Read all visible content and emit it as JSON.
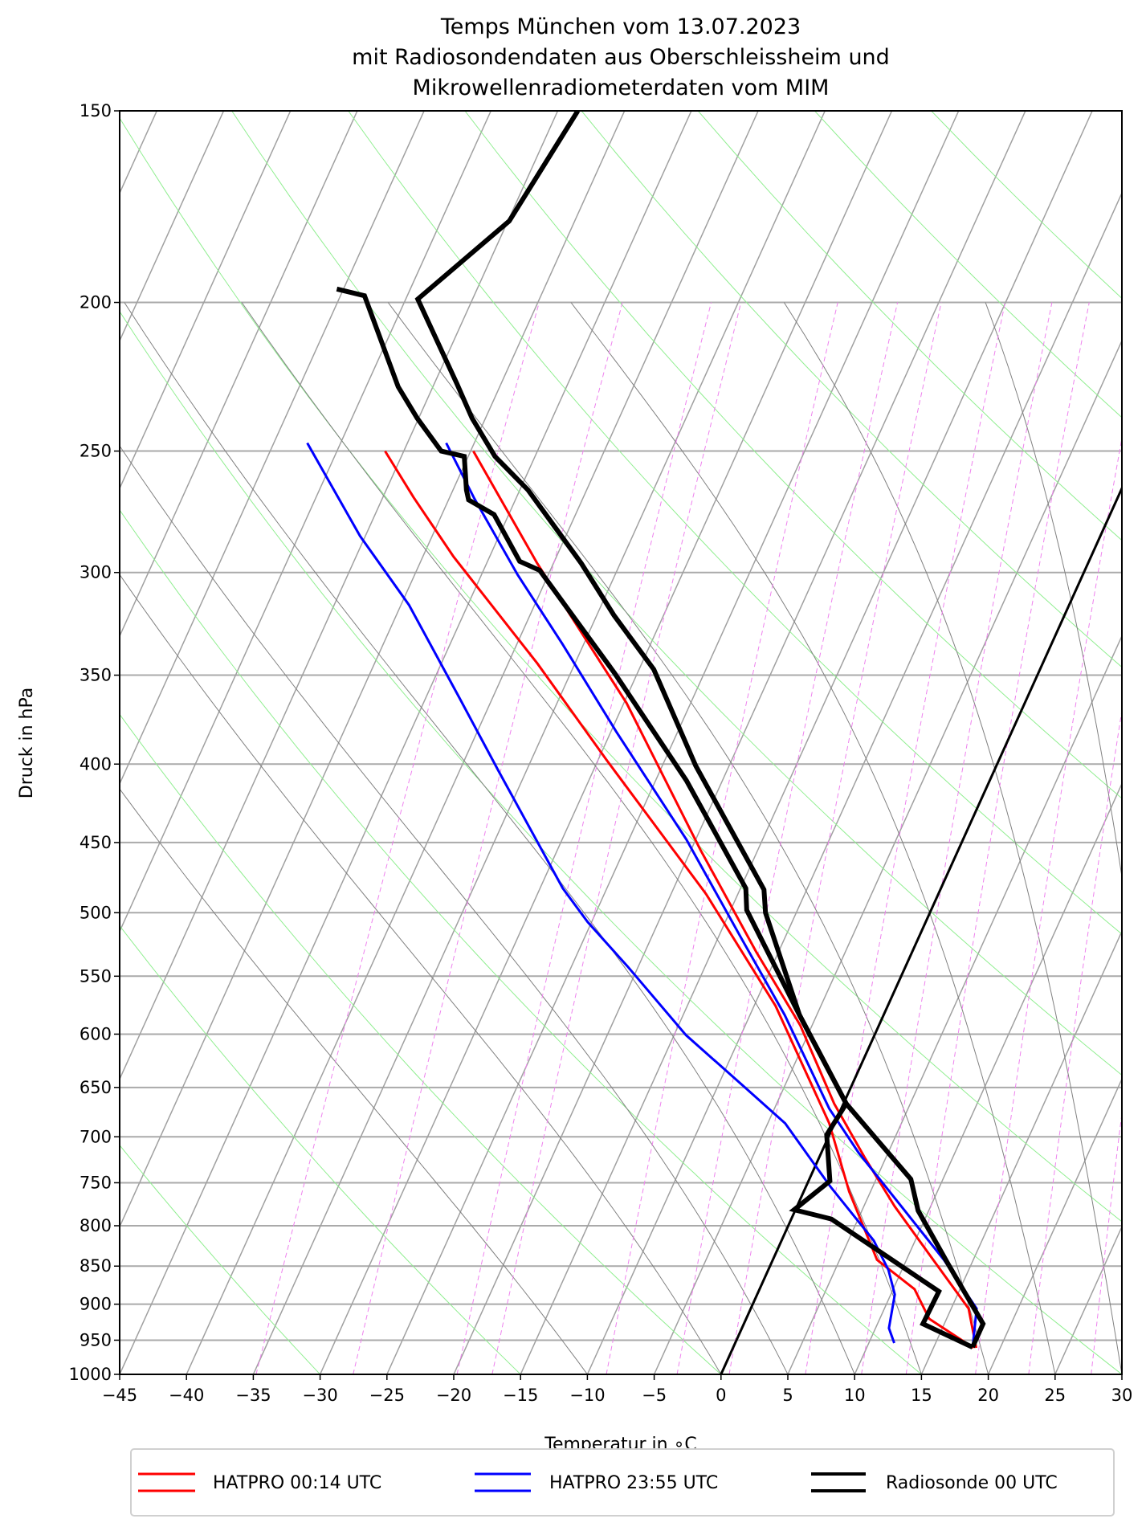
{
  "chart_data": {
    "type": "line",
    "diagram": "skew-T log-p",
    "title": [
      "Temps München vom 13.07.2023",
      "mit Radiosondendaten aus Oberschleissheim und",
      "Mikrowellenradiometerdaten vom MIM"
    ],
    "xlabel": "Temperatur in $^\\circ$C",
    "xlabel_display": "Temperatur in ∘C",
    "ylabel": "Druck in hPa",
    "xlim": [
      -45,
      30
    ],
    "ylim": [
      1000,
      150
    ],
    "yscale": "log",
    "grid": true,
    "legend_placement": "bottom",
    "xticks": [
      "−45",
      "−40",
      "−35",
      "−30",
      "−25",
      "−20",
      "−15",
      "−10",
      "−5",
      "0",
      "5",
      "10",
      "15",
      "20",
      "25",
      "30"
    ],
    "xtick_values": [
      -45,
      -40,
      -35,
      -30,
      -25,
      -20,
      -15,
      -10,
      -5,
      0,
      5,
      10,
      15,
      20,
      25,
      30
    ],
    "yticks": [
      "150",
      "200",
      "250",
      "300",
      "350",
      "400",
      "450",
      "500",
      "550",
      "600",
      "650",
      "700",
      "750",
      "800",
      "850",
      "900",
      "950",
      "1000"
    ],
    "ytick_values": [
      150,
      200,
      250,
      300,
      350,
      400,
      450,
      500,
      550,
      600,
      650,
      700,
      750,
      800,
      850,
      900,
      950,
      1000
    ],
    "reference_lines": {
      "isotherm_step_C": 5,
      "highlighted_isotherm_C": 0,
      "dry_adiabat_color": "#90ee90",
      "moist_adiabat_start_C_at_1000hPa": [
        -10,
        0,
        5,
        10,
        15,
        20,
        25,
        30,
        35
      ],
      "mixing_ratios_g_per_kg": [
        0.2,
        0.4,
        0.8,
        1,
        2,
        3,
        4,
        6,
        8,
        10,
        14,
        18,
        24
      ],
      "mixing_ratio_color": "#ee82ee"
    },
    "series": [
      {
        "name": "HATPRO 00:14 UTC",
        "color": "#ff0000",
        "temperature": [
          [
            250,
            -49.8
          ],
          [
            296,
            -41.2
          ],
          [
            365,
            -29.8
          ],
          [
            455,
            -19.3
          ],
          [
            530,
            -11.7
          ],
          [
            592,
            -5.9
          ],
          [
            666,
            -0.7
          ],
          [
            722,
            3.4
          ],
          [
            777,
            7.3
          ],
          [
            842,
            12.0
          ],
          [
            906,
            16.3
          ],
          [
            961,
            18.2
          ]
        ],
        "dewpoint": [
          [
            250,
            -56.4
          ],
          [
            268,
            -52.7
          ],
          [
            293,
            -47.7
          ],
          [
            344,
            -37.8
          ],
          [
            398,
            -29.3
          ],
          [
            486,
            -17.4
          ],
          [
            575,
            -8.4
          ],
          [
            686,
            -0.4
          ],
          [
            760,
            3.4
          ],
          [
            842,
            7.8
          ],
          [
            880,
            11.6
          ],
          [
            920,
            13.7
          ],
          [
            961,
            18.0
          ]
        ]
      },
      {
        "name": "HATPRO 23:55 UTC",
        "color": "#0000ff",
        "temperature": [
          [
            247,
            -52.1
          ],
          [
            268,
            -48.2
          ],
          [
            301,
            -42.3
          ],
          [
            334,
            -36.6
          ],
          [
            381,
            -29.6
          ],
          [
            448,
            -20.7
          ],
          [
            519,
            -13.3
          ],
          [
            583,
            -7.4
          ],
          [
            671,
            -0.9
          ],
          [
            717,
            2.8
          ],
          [
            782,
            8.2
          ],
          [
            842,
            12.8
          ],
          [
            906,
            16.9
          ],
          [
            954,
            17.8
          ]
        ],
        "dewpoint": [
          [
            247,
            -62.5
          ],
          [
            284,
            -55.4
          ],
          [
            315,
            -49.4
          ],
          [
            362,
            -42.5
          ],
          [
            404,
            -37.1
          ],
          [
            482,
            -28.3
          ],
          [
            507,
            -25.3
          ],
          [
            542,
            -20.8
          ],
          [
            601,
            -14.1
          ],
          [
            651,
            -7.8
          ],
          [
            686,
            -3.7
          ],
          [
            754,
            1.8
          ],
          [
            818,
            6.9
          ],
          [
            855,
            9.0
          ],
          [
            887,
            10.3
          ],
          [
            933,
            11.0
          ],
          [
            954,
            11.9
          ]
        ]
      },
      {
        "name": "Radiosonde 00 UTC",
        "color": "#000000",
        "temperature": [
          [
            150,
            -53.5
          ],
          [
            177,
            -54.9
          ],
          [
            199,
            -59.1
          ],
          [
            226,
            -53.3
          ],
          [
            238,
            -51.0
          ],
          [
            252,
            -48.0
          ],
          [
            265,
            -44.4
          ],
          [
            296,
            -37.9
          ],
          [
            320,
            -33.7
          ],
          [
            347,
            -28.9
          ],
          [
            401,
            -22.5
          ],
          [
            483,
            -13.2
          ],
          [
            500,
            -12.3
          ],
          [
            583,
            -6.3
          ],
          [
            666,
            0.2
          ],
          [
            706,
            4.0
          ],
          [
            746,
            7.6
          ],
          [
            782,
            9.2
          ],
          [
            848,
            13.3
          ],
          [
            927,
            17.9
          ],
          [
            960,
            17.9
          ]
        ],
        "dewpoint": [
          [
            196,
            -65.5
          ],
          [
            198,
            -63.2
          ],
          [
            227,
            -57.6
          ],
          [
            238,
            -55.1
          ],
          [
            250,
            -52.2
          ],
          [
            252,
            -50.3
          ],
          [
            265,
            -49.0
          ],
          [
            269,
            -48.5
          ],
          [
            275,
            -46.1
          ],
          [
            295,
            -42.6
          ],
          [
            299,
            -40.8
          ],
          [
            349,
            -31.7
          ],
          [
            410,
            -22.7
          ],
          [
            482,
            -14.6
          ],
          [
            498,
            -13.8
          ],
          [
            583,
            -6.3
          ],
          [
            666,
            0.2
          ],
          [
            698,
            -0.2
          ],
          [
            748,
            1.6
          ],
          [
            781,
            -0.1
          ],
          [
            792,
            3.0
          ],
          [
            883,
            13.5
          ],
          [
            927,
            13.4
          ],
          [
            960,
            17.9
          ]
        ]
      }
    ]
  }
}
